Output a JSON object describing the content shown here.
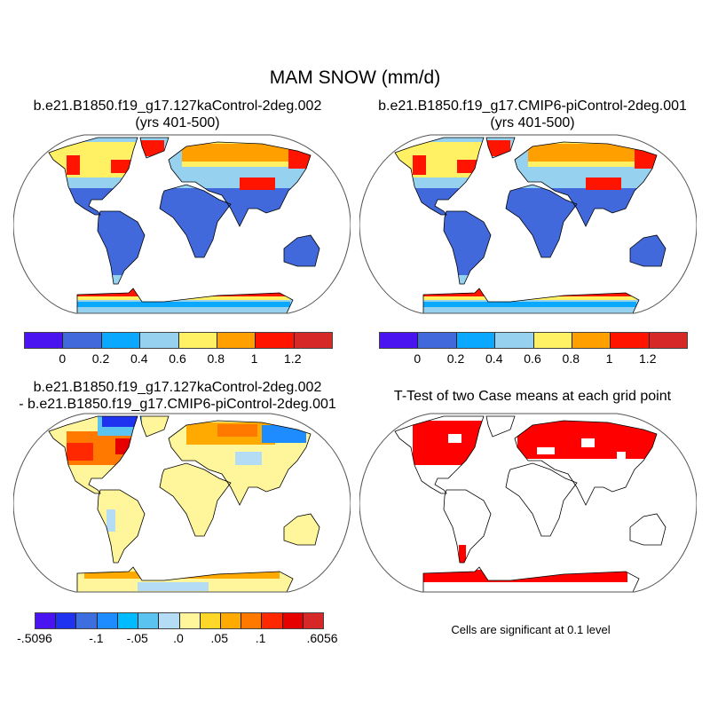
{
  "title": "MAM SNOW (mm/d)",
  "panels": [
    {
      "title": "b.e21.B1850.f19_g17.127kaControl-2deg.002",
      "subtitle": "(yrs 401-500)"
    },
    {
      "title": "b.e21.B1850.f19_g17.CMIP6-piControl-2deg.001",
      "subtitle": "(yrs 401-500)"
    },
    {
      "title": "b.e21.B1850.f19_g17.127kaControl-2deg.002",
      "subtitle": "- b.e21.B1850.f19_g17.CMIP6-piControl-2deg.001"
    },
    {
      "title": "T-Test of two Case means at each grid point",
      "note": "Cells are significant at 0.1 level"
    }
  ],
  "colorbar_snow": {
    "colors": [
      "#4a14f0",
      "#4169dc",
      "#0aa8ff",
      "#96d2f0",
      "#fff064",
      "#ffa000",
      "#ff1400",
      "#d72828"
    ],
    "labels": [
      "0",
      "0.2",
      "0.4",
      "0.6",
      "0.8",
      "1",
      "1.2"
    ]
  },
  "colorbar_diff": {
    "colors": [
      "#4a14f0",
      "#1e32f0",
      "#3c6ee0",
      "#1e8cff",
      "#00bbff",
      "#5ac3f0",
      "#b4dcf5",
      "#fff59a",
      "#ffd728",
      "#ffaa00",
      "#ff7800",
      "#ff2800",
      "#e60000",
      "#d72828"
    ],
    "labels": [
      "-.5096",
      "-.1",
      "-.05",
      ".0",
      ".05",
      ".1",
      ".6056"
    ]
  },
  "ttest_color": "#ff0000"
}
